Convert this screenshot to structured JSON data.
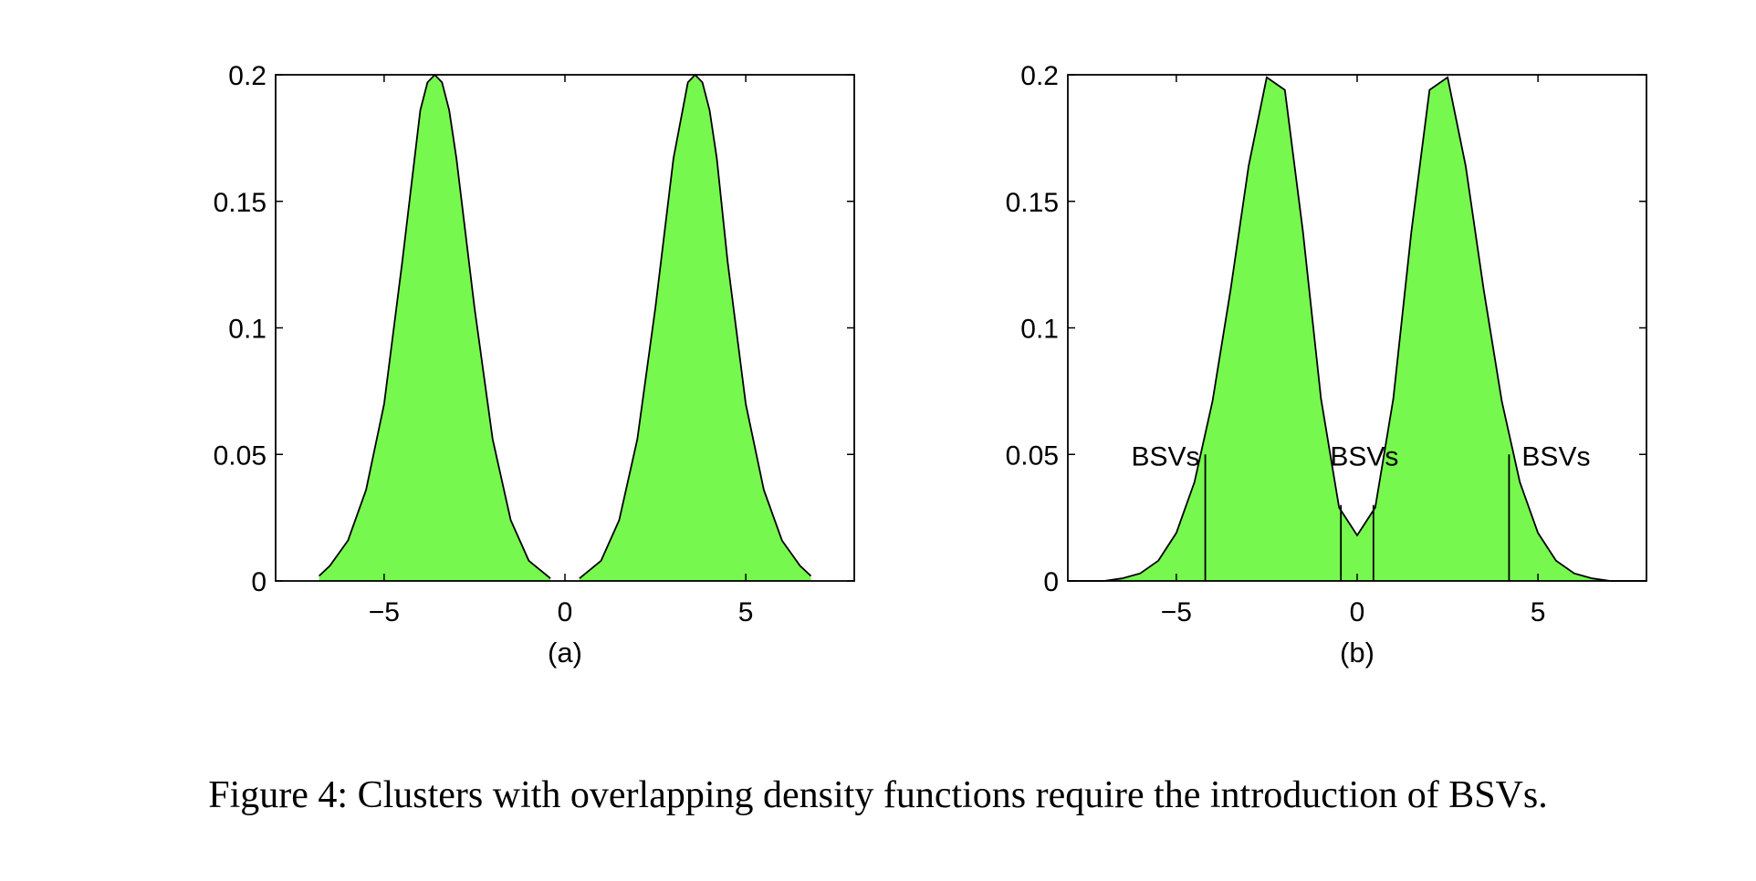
{
  "caption": "Figure 4: Clusters with overlapping density functions require the introduction of BSVs.",
  "chart_data": [
    {
      "type": "area",
      "sublabel": "(a)",
      "title": "",
      "xlabel": "",
      "ylabel": "",
      "xlim": [
        -8,
        8
      ],
      "ylim": [
        0,
        0.2
      ],
      "xticks": [
        -5,
        0,
        5
      ],
      "xtick_labels": [
        "−5",
        "0",
        "5"
      ],
      "yticks": [
        0,
        0.05,
        0.1,
        0.15,
        0.2
      ],
      "ytick_labels": [
        "0",
        "0.05",
        "0.1",
        "0.15",
        "0.2"
      ],
      "fill_color": "#77f84e",
      "series": [
        {
          "x": [
            -6.8,
            -6.5,
            -6.0,
            -5.5,
            -5.0,
            -4.5,
            -4.0,
            -3.8,
            -3.6,
            -3.4,
            -3.2,
            -3.0,
            -2.5,
            -2.0,
            -1.5,
            -1.0,
            -0.4
          ],
          "y": [
            0.002,
            0.006,
            0.016,
            0.036,
            0.07,
            0.126,
            0.186,
            0.197,
            0.2,
            0.197,
            0.186,
            0.167,
            0.108,
            0.056,
            0.024,
            0.008,
            0.001
          ]
        },
        {
          "x": [
            0.4,
            1.0,
            1.5,
            2.0,
            2.5,
            3.0,
            3.4,
            3.6,
            3.8,
            4.0,
            4.2,
            4.5,
            5.0,
            5.5,
            6.0,
            6.5,
            6.8
          ],
          "y": [
            0.001,
            0.008,
            0.024,
            0.056,
            0.108,
            0.167,
            0.197,
            0.2,
            0.197,
            0.186,
            0.167,
            0.126,
            0.07,
            0.036,
            0.016,
            0.006,
            0.002
          ]
        }
      ]
    },
    {
      "type": "area",
      "sublabel": "(b)",
      "title": "",
      "xlabel": "",
      "ylabel": "",
      "xlim": [
        -8,
        8
      ],
      "ylim": [
        0,
        0.2
      ],
      "xticks": [
        -5,
        0,
        5
      ],
      "xtick_labels": [
        "−5",
        "0",
        "5"
      ],
      "yticks": [
        0,
        0.05,
        0.1,
        0.15,
        0.2
      ],
      "ytick_labels": [
        "0",
        "0.05",
        "0.1",
        "0.15",
        "0.2"
      ],
      "fill_color": "#77f84e",
      "series": [
        {
          "x": [
            -8.0,
            -7.0,
            -6.5,
            -6.0,
            -5.5,
            -5.0,
            -4.5,
            -4.0,
            -3.5,
            -3.0,
            -2.5,
            -2.0,
            -1.5,
            -1.0,
            -0.5,
            0.0,
            0.5,
            1.0,
            1.5,
            2.0,
            2.5,
            3.0,
            3.5,
            4.0,
            4.5,
            5.0,
            5.5,
            6.0,
            6.5,
            7.0,
            8.0
          ],
          "y": [
            0.0,
            0.0,
            0.001,
            0.003,
            0.008,
            0.019,
            0.039,
            0.071,
            0.115,
            0.164,
            0.199,
            0.194,
            0.138,
            0.072,
            0.029,
            0.018,
            0.029,
            0.072,
            0.138,
            0.194,
            0.199,
            0.164,
            0.115,
            0.071,
            0.039,
            0.019,
            0.008,
            0.003,
            0.001,
            0.0,
            0.0
          ]
        }
      ],
      "bsv_lines": [
        {
          "x": -4.2,
          "y": 0.05
        },
        {
          "x": -0.45,
          "y": 0.03
        },
        {
          "x": 0.45,
          "y": 0.03
        },
        {
          "x": 4.2,
          "y": 0.05
        }
      ],
      "annotations": [
        {
          "text": "BSVs",
          "x": -5.3,
          "y": 0.05
        },
        {
          "text": "BSVs",
          "x": 0.2,
          "y": 0.05
        },
        {
          "text": "BSVs",
          "x": 5.5,
          "y": 0.05
        }
      ]
    }
  ]
}
